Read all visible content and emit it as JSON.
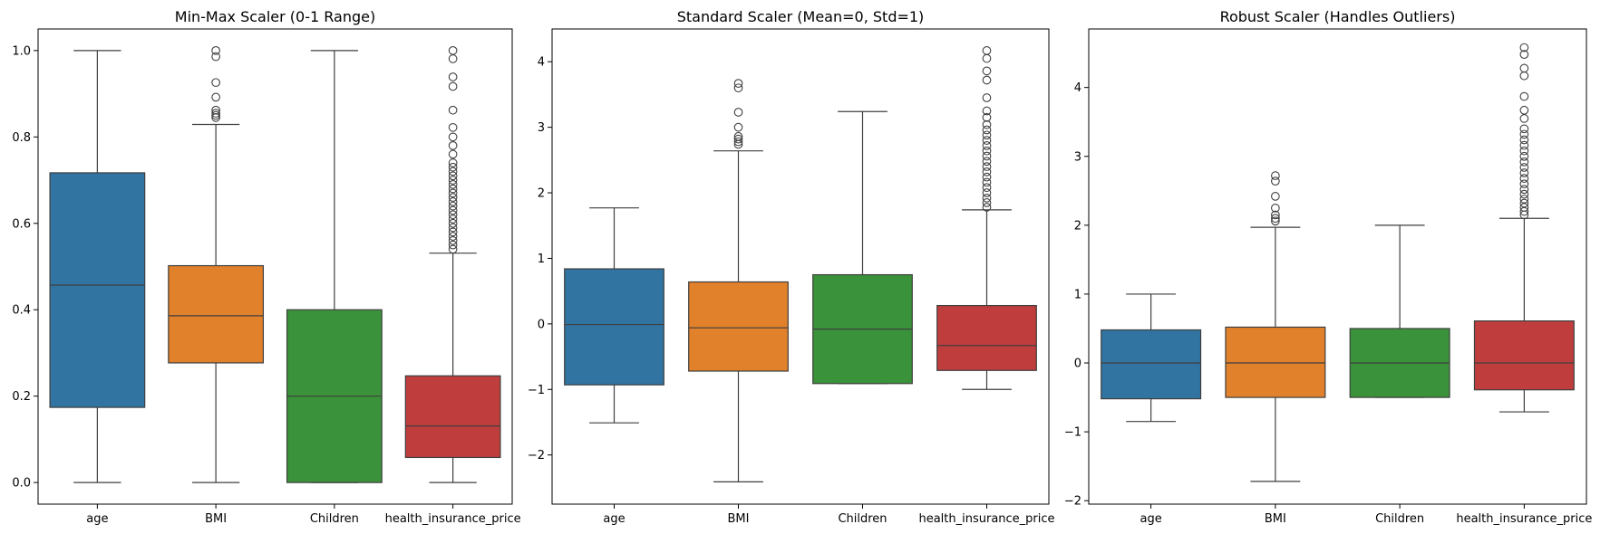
{
  "colors": {
    "age": "#3274a1",
    "BMI": "#e1812c",
    "Children": "#3a923a",
    "health_insurance_price": "#c03d3e",
    "line": "#3f3f3f"
  },
  "chart_data": [
    {
      "type": "box",
      "title": "Min-Max Scaler (0-1 Range)",
      "categories": [
        "age",
        "BMI",
        "Children",
        "health_insurance_price"
      ],
      "ylim": [
        -0.05,
        1.05
      ],
      "yticks": [
        0.0,
        0.2,
        0.4,
        0.6,
        0.8,
        1.0
      ],
      "ytick_labels": [
        "0.0",
        "0.2",
        "0.4",
        "0.6",
        "0.8",
        "1.0"
      ],
      "boxes": [
        {
          "whislo": 0.0,
          "q1": 0.174,
          "med": 0.457,
          "q3": 0.717,
          "whishi": 1.0,
          "fliers": []
        },
        {
          "whislo": 0.0,
          "q1": 0.277,
          "med": 0.386,
          "q3": 0.502,
          "whishi": 0.829,
          "fliers": [
            0.845,
            0.85,
            0.855,
            0.862,
            0.892,
            0.926,
            0.986,
            1.0
          ]
        },
        {
          "whislo": 0.0,
          "q1": 0.0,
          "med": 0.2,
          "q3": 0.4,
          "whishi": 1.0,
          "fliers": []
        },
        {
          "whislo": 0.0,
          "q1": 0.058,
          "med": 0.131,
          "q3": 0.247,
          "whishi": 0.531,
          "fliers": [
            0.54,
            0.55,
            0.56,
            0.57,
            0.58,
            0.59,
            0.6,
            0.61,
            0.62,
            0.63,
            0.64,
            0.65,
            0.66,
            0.67,
            0.68,
            0.69,
            0.7,
            0.71,
            0.72,
            0.73,
            0.74,
            0.76,
            0.78,
            0.8,
            0.822,
            0.862,
            0.917,
            0.939,
            0.981,
            1.0
          ]
        }
      ]
    },
    {
      "type": "box",
      "title": "Standard Scaler (Mean=0, Std=1)",
      "categories": [
        "age",
        "BMI",
        "Children",
        "health_insurance_price"
      ],
      "ylim": [
        -2.75,
        4.5
      ],
      "yticks": [
        -2,
        -1,
        0,
        1,
        2,
        3,
        4
      ],
      "ytick_labels": [
        "−2",
        "−1",
        "0",
        "1",
        "2",
        "3",
        "4"
      ],
      "boxes": [
        {
          "whislo": -1.51,
          "q1": -0.93,
          "med": -0.01,
          "q3": 0.84,
          "whishi": 1.77,
          "fliers": []
        },
        {
          "whislo": -2.41,
          "q1": -0.72,
          "med": -0.06,
          "q3": 0.64,
          "whishi": 2.64,
          "fliers": [
            2.74,
            2.78,
            2.82,
            2.86,
            3.0,
            3.23,
            3.6,
            3.67
          ]
        },
        {
          "whislo": -0.91,
          "q1": -0.91,
          "med": -0.08,
          "q3": 0.75,
          "whishi": 3.24,
          "fliers": []
        },
        {
          "whislo": -1.0,
          "q1": -0.71,
          "med": -0.33,
          "q3": 0.28,
          "whishi": 1.74,
          "fliers": [
            1.78,
            1.85,
            1.92,
            2.0,
            2.08,
            2.16,
            2.24,
            2.32,
            2.4,
            2.48,
            2.56,
            2.64,
            2.72,
            2.8,
            2.88,
            2.96,
            3.04,
            3.15,
            3.25,
            3.45,
            3.72,
            3.86,
            4.05,
            4.17
          ]
        }
      ]
    },
    {
      "type": "box",
      "title": "Robust Scaler (Handles Outliers)",
      "categories": [
        "age",
        "BMI",
        "Children",
        "health_insurance_price"
      ],
      "ylim": [
        -2.05,
        4.85
      ],
      "yticks": [
        -2,
        -1,
        0,
        1,
        2,
        3,
        4
      ],
      "ytick_labels": [
        "−2",
        "−1",
        "0",
        "1",
        "2",
        "3",
        "4"
      ],
      "boxes": [
        {
          "whislo": -0.85,
          "q1": -0.52,
          "med": 0.0,
          "q3": 0.48,
          "whishi": 1.0,
          "fliers": []
        },
        {
          "whislo": -1.72,
          "q1": -0.5,
          "med": 0.0,
          "q3": 0.52,
          "whishi": 1.97,
          "fliers": [
            2.06,
            2.1,
            2.15,
            2.25,
            2.42,
            2.64,
            2.72
          ]
        },
        {
          "whislo": -0.5,
          "q1": -0.5,
          "med": 0.0,
          "q3": 0.5,
          "whishi": 2.0,
          "fliers": []
        },
        {
          "whislo": -0.71,
          "q1": -0.39,
          "med": 0.0,
          "q3": 0.61,
          "whishi": 2.1,
          "fliers": [
            2.15,
            2.2,
            2.26,
            2.32,
            2.38,
            2.45,
            2.52,
            2.6,
            2.68,
            2.76,
            2.84,
            2.92,
            3.0,
            3.08,
            3.16,
            3.24,
            3.32,
            3.4,
            3.55,
            3.67,
            3.87,
            4.17,
            4.28,
            4.48,
            4.58
          ]
        }
      ]
    }
  ]
}
